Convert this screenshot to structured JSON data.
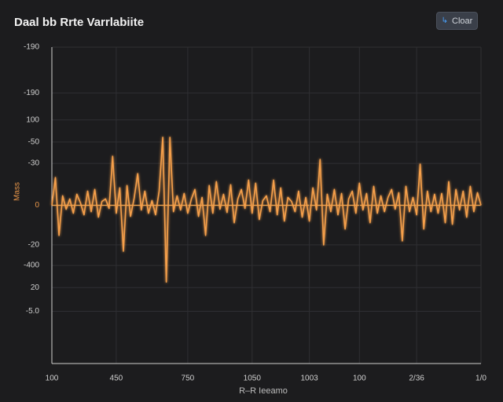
{
  "chart_data": {
    "type": "line",
    "title": "Daal bb Rrte Varrlabiite",
    "button": "Cloar",
    "x_label": "R–R Ieeamo",
    "y_label": "Mass",
    "xlim": [
      0,
      120
    ],
    "ylim": [
      -200,
      200
    ],
    "xticks": [
      {
        "value": 0,
        "label": "100"
      },
      {
        "value": 18,
        "label": "450"
      },
      {
        "value": 38,
        "label": "750"
      },
      {
        "value": 56,
        "label": "1050"
      },
      {
        "value": 72,
        "label": "1003"
      },
      {
        "value": 86,
        "label": "100"
      },
      {
        "value": 102,
        "label": "2/36"
      },
      {
        "value": 120,
        "label": "1/0"
      }
    ],
    "yticks": [
      {
        "value": 200,
        "label": "-190"
      },
      {
        "value": 142,
        "label": "-190"
      },
      {
        "value": 108,
        "label": "100"
      },
      {
        "value": 80,
        "label": "-50"
      },
      {
        "value": 53,
        "label": "-30"
      },
      0,
      {
        "value": -50,
        "label": "-20"
      },
      {
        "value": -76,
        "label": "-400"
      },
      {
        "value": -104,
        "label": "20"
      },
      {
        "value": -134,
        "label": "-5.0"
      }
    ],
    "grid": true,
    "series": [
      {
        "color": "#f6a04b",
        "x": [
          0,
          1,
          2,
          3,
          4,
          5,
          6,
          7,
          8,
          9,
          10,
          11,
          12,
          13,
          14,
          15,
          16,
          17,
          18,
          19,
          20,
          21,
          22,
          23,
          24,
          25,
          26,
          27,
          28,
          29,
          30,
          31,
          32,
          33,
          34,
          35,
          36,
          37,
          38,
          39,
          40,
          41,
          42,
          43,
          44,
          45,
          46,
          47,
          48,
          49,
          50,
          51,
          52,
          53,
          54,
          55,
          56,
          57,
          58,
          59,
          60,
          61,
          62,
          63,
          64,
          65,
          66,
          67,
          68,
          69,
          70,
          71,
          72,
          73,
          74,
          75,
          76,
          77,
          78,
          79,
          80,
          81,
          82,
          83,
          84,
          85,
          86,
          87,
          88,
          89,
          90,
          91,
          92,
          93,
          94,
          95,
          96,
          97,
          98,
          99,
          100,
          101,
          102,
          103,
          104,
          105,
          106,
          107,
          108,
          109,
          110,
          111,
          112,
          113,
          114,
          115,
          116,
          117,
          118,
          119,
          120
        ],
        "values": [
          0,
          35,
          -38,
          12,
          -5,
          8,
          -10,
          14,
          3,
          -12,
          18,
          -8,
          20,
          -15,
          5,
          8,
          -4,
          62,
          -10,
          22,
          -58,
          25,
          -14,
          9,
          40,
          -6,
          18,
          -10,
          6,
          -12,
          18,
          86,
          -97,
          86,
          -8,
          12,
          -6,
          15,
          -10,
          8,
          20,
          -14,
          10,
          -38,
          25,
          -10,
          30,
          -5,
          14,
          -9,
          26,
          -22,
          8,
          20,
          -4,
          32,
          -10,
          28,
          -18,
          6,
          12,
          -8,
          32,
          -12,
          22,
          -20,
          10,
          5,
          -8,
          18,
          -15,
          10,
          -20,
          22,
          -6,
          58,
          -50,
          14,
          -8,
          20,
          -12,
          15,
          -30,
          8,
          18,
          -10,
          28,
          -6,
          15,
          -22,
          24,
          -10,
          12,
          -8,
          10,
          20,
          -5,
          16,
          -45,
          24,
          -8,
          10,
          -12,
          52,
          -30,
          18,
          -8,
          14,
          -10,
          15,
          -22,
          30,
          -24,
          20,
          -6,
          18,
          -15,
          24,
          -8,
          16,
          0
        ]
      }
    ]
  }
}
